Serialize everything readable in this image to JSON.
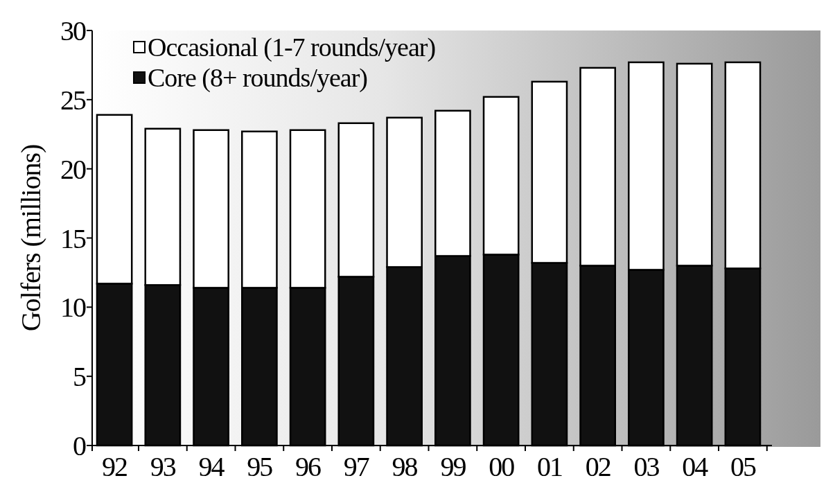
{
  "chart_data": {
    "type": "bar",
    "stacked": true,
    "ylabel": "Golfers (millions)",
    "categories": [
      "92",
      "93",
      "94",
      "95",
      "96",
      "97",
      "98",
      "99",
      "00",
      "01",
      "02",
      "03",
      "04",
      "05"
    ],
    "series": [
      {
        "name": "Core (8+ rounds/year)",
        "color": "#111111",
        "values": [
          11.7,
          11.6,
          11.4,
          11.4,
          11.4,
          12.2,
          12.9,
          13.7,
          13.8,
          13.2,
          13.0,
          12.7,
          13.0,
          12.8
        ]
      },
      {
        "name": "Occasional (1-7 rounds/year)",
        "color": "#ffffff",
        "values": [
          12.2,
          11.3,
          11.4,
          11.3,
          11.4,
          11.1,
          10.8,
          10.5,
          11.4,
          13.1,
          14.3,
          15.0,
          14.6,
          14.9
        ]
      }
    ],
    "ylim": [
      0,
      30
    ],
    "yticks": [
      0,
      5,
      10,
      15,
      20,
      25,
      30
    ],
    "grid": false,
    "legend": "top left"
  }
}
